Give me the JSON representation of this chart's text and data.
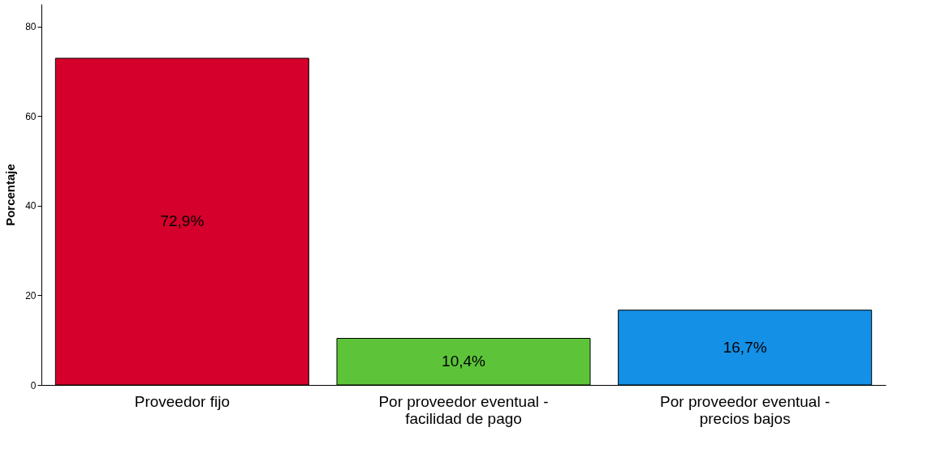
{
  "chart_data": {
    "type": "bar",
    "ylabel": "Porcentaje",
    "categories": [
      "Proveedor fijo",
      "Por proveedor eventual - facilidad de pago",
      "Por proveedor eventual - precios bajos"
    ],
    "values": [
      72.9,
      10.4,
      16.7
    ],
    "colors": [
      "#d5002b",
      "#5dc43a",
      "#1490e6"
    ],
    "value_labels": [
      "72,9%",
      "10,4%",
      "16,7%"
    ],
    "ylim": [
      0,
      85
    ],
    "yticks": [
      0,
      20,
      40,
      60,
      80
    ],
    "grid": false
  }
}
